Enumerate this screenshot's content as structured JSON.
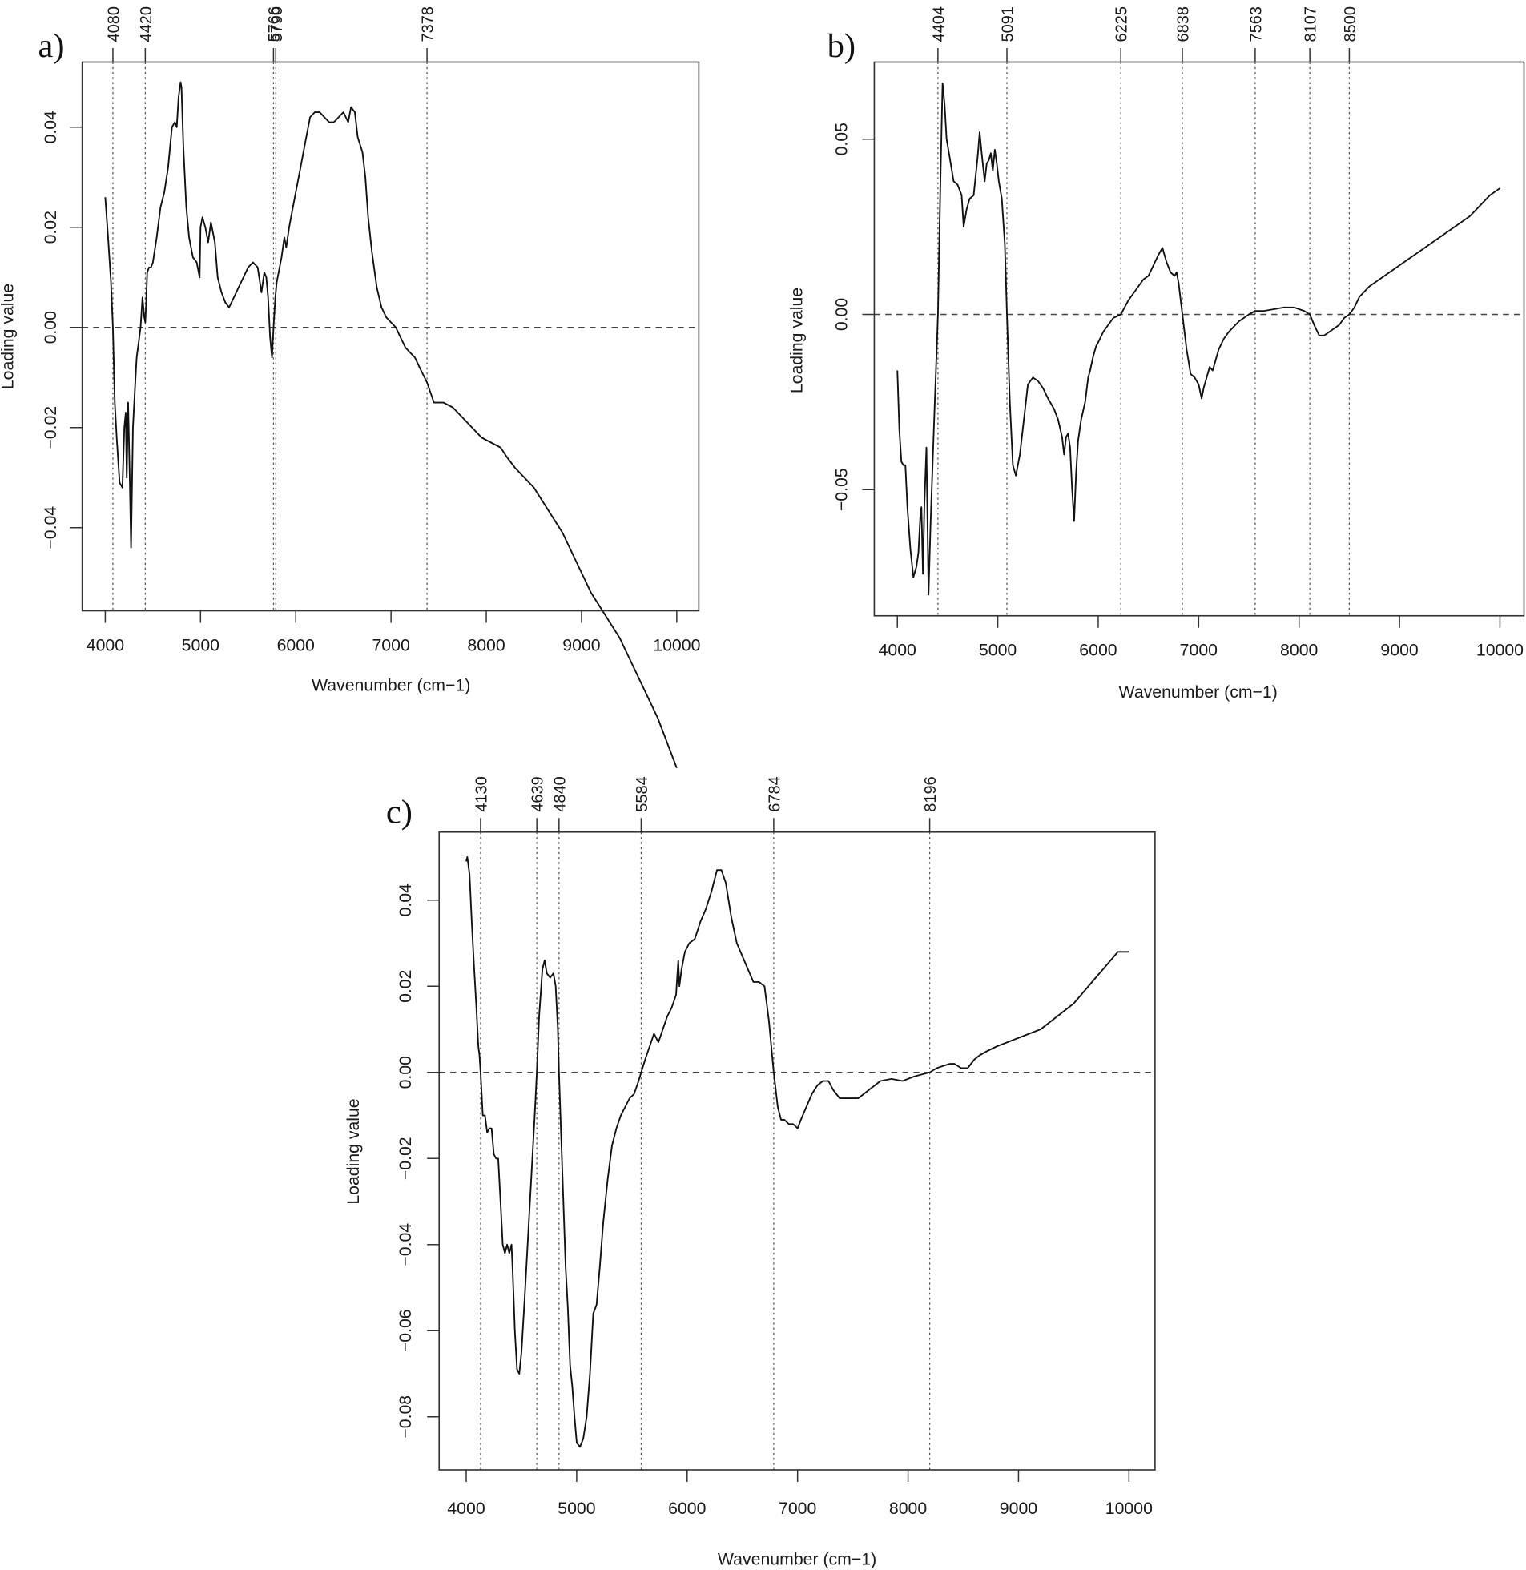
{
  "figure": {
    "panels": [
      "a)",
      "b)",
      "c)"
    ]
  },
  "chart_data": [
    {
      "id": "a",
      "panel_label": "a)",
      "type": "line",
      "title": "",
      "xlabel": "Wavenumber (cm−1)",
      "ylabel": "Loading value",
      "xlim": [
        4000,
        10000
      ],
      "ylim": [
        -0.054,
        0.054
      ],
      "x_ticks": [
        4000,
        5000,
        6000,
        7000,
        8000,
        9000,
        10000
      ],
      "x_tick_labels": [
        "4000",
        "5000",
        "6000",
        "7000",
        "8000",
        "9000",
        "10000"
      ],
      "y_ticks": [
        0.04,
        0.02,
        0.0,
        -0.02,
        -0.04
      ],
      "y_tick_labels": [
        "0.04",
        "0.02",
        "0.00",
        "−0.02",
        "−0.04"
      ],
      "zero_line": true,
      "grid": false,
      "marked_wavenumbers": [
        4080,
        4420,
        5766,
        5790,
        7378
      ],
      "marked_labels": [
        "4080",
        "4420",
        "5766",
        "5790",
        "7378"
      ],
      "series": [
        {
          "name": "loading",
          "x": [
            4000,
            4030,
            4060,
            4080,
            4100,
            4120,
            4150,
            4180,
            4200,
            4215,
            4225,
            4240,
            4255,
            4270,
            4290,
            4310,
            4330,
            4350,
            4370,
            4390,
            4410,
            4420,
            4430,
            4440,
            4460,
            4480,
            4500,
            4540,
            4580,
            4620,
            4660,
            4700,
            4730,
            4750,
            4770,
            4790,
            4800,
            4820,
            4850,
            4880,
            4920,
            4960,
            4990,
            5000,
            5020,
            5050,
            5080,
            5110,
            5150,
            5180,
            5220,
            5260,
            5300,
            5350,
            5400,
            5450,
            5500,
            5550,
            5600,
            5640,
            5670,
            5690,
            5710,
            5730,
            5750,
            5770,
            5785,
            5800,
            5820,
            5850,
            5880,
            5900,
            5930,
            5960,
            6000,
            6050,
            6100,
            6150,
            6200,
            6250,
            6300,
            6350,
            6400,
            6450,
            6500,
            6550,
            6580,
            6620,
            6650,
            6700,
            6730,
            6760,
            6800,
            6850,
            6900,
            6950,
            7000,
            7050,
            7100,
            7150,
            7200,
            7250,
            7300,
            7378,
            7450,
            7550,
            7650,
            7750,
            7850,
            7950,
            8050,
            8150,
            8220,
            8300,
            8400,
            8500,
            8600,
            8700,
            8800,
            8900,
            9000,
            9100,
            9200,
            9300,
            9400,
            9500,
            9600,
            9700,
            9800,
            9900,
            10000
          ],
          "y": [
            0.026,
            0.018,
            0.009,
            0.0,
            -0.015,
            -0.022,
            -0.031,
            -0.032,
            -0.02,
            -0.017,
            -0.03,
            -0.015,
            -0.028,
            -0.044,
            -0.02,
            -0.013,
            -0.006,
            -0.003,
            0.0,
            0.006,
            0.002,
            0.001,
            0.005,
            0.011,
            0.012,
            0.012,
            0.013,
            0.018,
            0.024,
            0.027,
            0.032,
            0.04,
            0.041,
            0.04,
            0.046,
            0.049,
            0.048,
            0.036,
            0.024,
            0.018,
            0.014,
            0.013,
            0.01,
            0.02,
            0.022,
            0.02,
            0.017,
            0.021,
            0.017,
            0.01,
            0.007,
            0.005,
            0.004,
            0.006,
            0.008,
            0.01,
            0.012,
            0.013,
            0.012,
            0.007,
            0.011,
            0.01,
            0.006,
            -0.002,
            -0.006,
            0.001,
            0.006,
            0.009,
            0.011,
            0.014,
            0.018,
            0.016,
            0.02,
            0.023,
            0.027,
            0.032,
            0.037,
            0.042,
            0.043,
            0.043,
            0.042,
            0.041,
            0.041,
            0.042,
            0.043,
            0.041,
            0.044,
            0.043,
            0.038,
            0.035,
            0.03,
            0.022,
            0.015,
            0.008,
            0.004,
            0.002,
            0.001,
            0.0,
            -0.002,
            -0.004,
            -0.005,
            -0.006,
            -0.008,
            -0.011,
            -0.015,
            -0.015,
            -0.016,
            -0.018,
            -0.02,
            -0.022,
            -0.023,
            -0.024,
            -0.026,
            -0.028,
            -0.03,
            -0.032,
            -0.035,
            -0.038,
            -0.041,
            -0.045,
            -0.049,
            -0.053,
            -0.056,
            -0.059,
            -0.062,
            -0.066,
            -0.07,
            -0.074,
            -0.078,
            -0.083,
            -0.088
          ]
        }
      ]
    },
    {
      "id": "b",
      "panel_label": "b)",
      "type": "line",
      "title": "",
      "xlabel": "Wavenumber (cm−1)",
      "ylabel": "Loading value",
      "xlim": [
        4000,
        10000
      ],
      "ylim": [
        -0.087,
        0.072
      ],
      "x_ticks": [
        4000,
        5000,
        6000,
        7000,
        8000,
        9000,
        10000
      ],
      "x_tick_labels": [
        "4000",
        "5000",
        "6000",
        "7000",
        "8000",
        "9000",
        "10000"
      ],
      "y_ticks": [
        0.05,
        0.0,
        -0.05
      ],
      "y_tick_labels": [
        "0.05",
        "0.00",
        "−0.05"
      ],
      "zero_line": true,
      "grid": false,
      "marked_wavenumbers": [
        4404,
        5091,
        6225,
        6838,
        7563,
        8107,
        8500
      ],
      "marked_labels": [
        "4404",
        "5091",
        "6225",
        "6838",
        "7563",
        "8107",
        "8500"
      ],
      "series": [
        {
          "name": "loading",
          "x": [
            4000,
            4020,
            4040,
            4060,
            4080,
            4100,
            4130,
            4160,
            4190,
            4210,
            4230,
            4240,
            4255,
            4270,
            4290,
            4310,
            4330,
            4360,
            4404,
            4430,
            4450,
            4470,
            4490,
            4520,
            4560,
            4600,
            4640,
            4660,
            4690,
            4720,
            4760,
            4800,
            4820,
            4840,
            4870,
            4890,
            4910,
            4930,
            4950,
            4970,
            4990,
            5010,
            5040,
            5070,
            5091,
            5120,
            5150,
            5180,
            5220,
            5260,
            5300,
            5350,
            5400,
            5450,
            5500,
            5560,
            5600,
            5640,
            5660,
            5680,
            5700,
            5720,
            5740,
            5760,
            5780,
            5800,
            5830,
            5870,
            5900,
            5920,
            5950,
            5980,
            6000,
            6050,
            6100,
            6150,
            6225,
            6300,
            6350,
            6400,
            6450,
            6500,
            6550,
            6600,
            6640,
            6680,
            6720,
            6760,
            6780,
            6800,
            6838,
            6880,
            6920,
            6960,
            7000,
            7030,
            7050,
            7080,
            7110,
            7140,
            7170,
            7200,
            7250,
            7300,
            7400,
            7500,
            7563,
            7650,
            7750,
            7850,
            7950,
            8000,
            8050,
            8107,
            8150,
            8200,
            8250,
            8300,
            8350,
            8400,
            8450,
            8500,
            8550,
            8600,
            8700,
            8800,
            8900,
            9000,
            9100,
            9200,
            9300,
            9400,
            9500,
            9600,
            9700,
            9800,
            9900,
            10000
          ],
          "y": [
            -0.016,
            -0.033,
            -0.042,
            -0.043,
            -0.043,
            -0.055,
            -0.067,
            -0.075,
            -0.072,
            -0.068,
            -0.057,
            -0.055,
            -0.074,
            -0.054,
            -0.038,
            -0.08,
            -0.06,
            -0.035,
            0.0,
            0.04,
            0.066,
            0.06,
            0.05,
            0.045,
            0.038,
            0.037,
            0.034,
            0.025,
            0.03,
            0.033,
            0.034,
            0.045,
            0.052,
            0.046,
            0.038,
            0.043,
            0.044,
            0.046,
            0.041,
            0.047,
            0.043,
            0.038,
            0.033,
            0.02,
            0.0,
            -0.025,
            -0.043,
            -0.046,
            -0.04,
            -0.03,
            -0.02,
            -0.018,
            -0.019,
            -0.021,
            -0.024,
            -0.027,
            -0.03,
            -0.035,
            -0.04,
            -0.035,
            -0.034,
            -0.038,
            -0.05,
            -0.059,
            -0.045,
            -0.036,
            -0.03,
            -0.025,
            -0.018,
            -0.016,
            -0.012,
            -0.009,
            -0.008,
            -0.005,
            -0.003,
            -0.001,
            0.0,
            0.004,
            0.006,
            0.008,
            0.01,
            0.011,
            0.014,
            0.017,
            0.019,
            0.015,
            0.012,
            0.011,
            0.012,
            0.009,
            0.0,
            -0.01,
            -0.017,
            -0.018,
            -0.02,
            -0.024,
            -0.021,
            -0.018,
            -0.015,
            -0.016,
            -0.013,
            -0.01,
            -0.007,
            -0.005,
            -0.002,
            0.0,
            0.001,
            0.001,
            0.0015,
            0.002,
            0.002,
            0.0015,
            0.001,
            0.0,
            -0.003,
            -0.006,
            -0.006,
            -0.005,
            -0.004,
            -0.003,
            -0.001,
            0.0,
            0.002,
            0.005,
            0.008,
            0.01,
            0.012,
            0.014,
            0.016,
            0.018,
            0.02,
            0.022,
            0.024,
            0.026,
            0.028,
            0.031,
            0.034,
            0.036
          ]
        }
      ]
    },
    {
      "id": "c",
      "panel_label": "c)",
      "type": "line",
      "title": "",
      "xlabel": "Wavenumber (cm−1)",
      "ylabel": "Loading value",
      "xlim": [
        4000,
        10000
      ],
      "ylim": [
        -0.092,
        0.056
      ],
      "x_ticks": [
        4000,
        5000,
        6000,
        7000,
        8000,
        9000,
        10000
      ],
      "x_tick_labels": [
        "4000",
        "5000",
        "6000",
        "7000",
        "8000",
        "9000",
        "10000"
      ],
      "y_ticks": [
        0.04,
        0.02,
        0.0,
        -0.02,
        -0.04,
        -0.06,
        -0.08
      ],
      "y_tick_labels": [
        "0.04",
        "0.02",
        "0.00",
        "−0.02",
        "−0.04",
        "−0.06",
        "−0.08"
      ],
      "zero_line": true,
      "grid": false,
      "marked_wavenumbers": [
        4130,
        4639,
        4840,
        5584,
        6784,
        8196
      ],
      "marked_labels": [
        "4130",
        "4639",
        "4840",
        "5584",
        "6784",
        "8196"
      ],
      "series": [
        {
          "name": "loading",
          "x": [
            4000,
            4010,
            4030,
            4050,
            4070,
            4090,
            4110,
            4120,
            4130,
            4150,
            4170,
            4190,
            4210,
            4230,
            4250,
            4270,
            4290,
            4310,
            4330,
            4350,
            4370,
            4390,
            4410,
            4420,
            4440,
            4460,
            4480,
            4500,
            4530,
            4560,
            4590,
            4620,
            4639,
            4660,
            4690,
            4710,
            4730,
            4760,
            4790,
            4810,
            4830,
            4840,
            4860,
            4880,
            4900,
            4920,
            4940,
            4960,
            4980,
            5000,
            5030,
            5060,
            5090,
            5120,
            5150,
            5180,
            5210,
            5240,
            5280,
            5320,
            5360,
            5400,
            5440,
            5480,
            5520,
            5560,
            5584,
            5620,
            5660,
            5700,
            5740,
            5780,
            5820,
            5860,
            5900,
            5920,
            5930,
            5950,
            5980,
            6020,
            6070,
            6120,
            6170,
            6220,
            6270,
            6310,
            6350,
            6400,
            6450,
            6500,
            6550,
            6600,
            6650,
            6700,
            6740,
            6784,
            6820,
            6850,
            6880,
            6920,
            6960,
            7000,
            7030,
            7080,
            7130,
            7180,
            7230,
            7280,
            7320,
            7380,
            7450,
            7550,
            7650,
            7750,
            7850,
            7950,
            8050,
            8120,
            8196,
            8260,
            8320,
            8380,
            8420,
            8480,
            8540,
            8600,
            8650,
            8720,
            8800,
            8900,
            9000,
            9100,
            9200,
            9300,
            9400,
            9500,
            9600,
            9700,
            9800,
            9900,
            10000
          ],
          "y": [
            0.049,
            0.05,
            0.046,
            0.035,
            0.025,
            0.016,
            0.006,
            0.004,
            0.0,
            -0.01,
            -0.01,
            -0.014,
            -0.013,
            -0.013,
            -0.019,
            -0.02,
            -0.02,
            -0.03,
            -0.04,
            -0.042,
            -0.04,
            -0.042,
            -0.04,
            -0.046,
            -0.06,
            -0.069,
            -0.07,
            -0.065,
            -0.052,
            -0.038,
            -0.024,
            -0.01,
            0.0,
            0.013,
            0.024,
            0.026,
            0.023,
            0.022,
            0.023,
            0.02,
            0.01,
            0.0,
            -0.015,
            -0.03,
            -0.045,
            -0.055,
            -0.068,
            -0.073,
            -0.08,
            -0.086,
            -0.087,
            -0.085,
            -0.08,
            -0.07,
            -0.056,
            -0.054,
            -0.045,
            -0.035,
            -0.025,
            -0.017,
            -0.013,
            -0.01,
            -0.008,
            -0.006,
            -0.005,
            -0.002,
            0.0,
            0.003,
            0.006,
            0.009,
            0.007,
            0.01,
            0.013,
            0.015,
            0.018,
            0.026,
            0.02,
            0.024,
            0.028,
            0.03,
            0.031,
            0.035,
            0.038,
            0.042,
            0.047,
            0.047,
            0.044,
            0.036,
            0.03,
            0.027,
            0.024,
            0.021,
            0.021,
            0.02,
            0.012,
            0.0,
            -0.008,
            -0.011,
            -0.011,
            -0.012,
            -0.012,
            -0.013,
            -0.011,
            -0.008,
            -0.005,
            -0.003,
            -0.002,
            -0.002,
            -0.004,
            -0.006,
            -0.006,
            -0.006,
            -0.004,
            -0.002,
            -0.0015,
            -0.002,
            -0.001,
            -0.0005,
            0.0,
            0.001,
            0.0015,
            0.002,
            0.002,
            0.001,
            0.001,
            0.003,
            0.004,
            0.005,
            0.006,
            0.007,
            0.008,
            0.009,
            0.01,
            0.012,
            0.014,
            0.016,
            0.019,
            0.022,
            0.025,
            0.028,
            0.028
          ]
        }
      ]
    }
  ]
}
